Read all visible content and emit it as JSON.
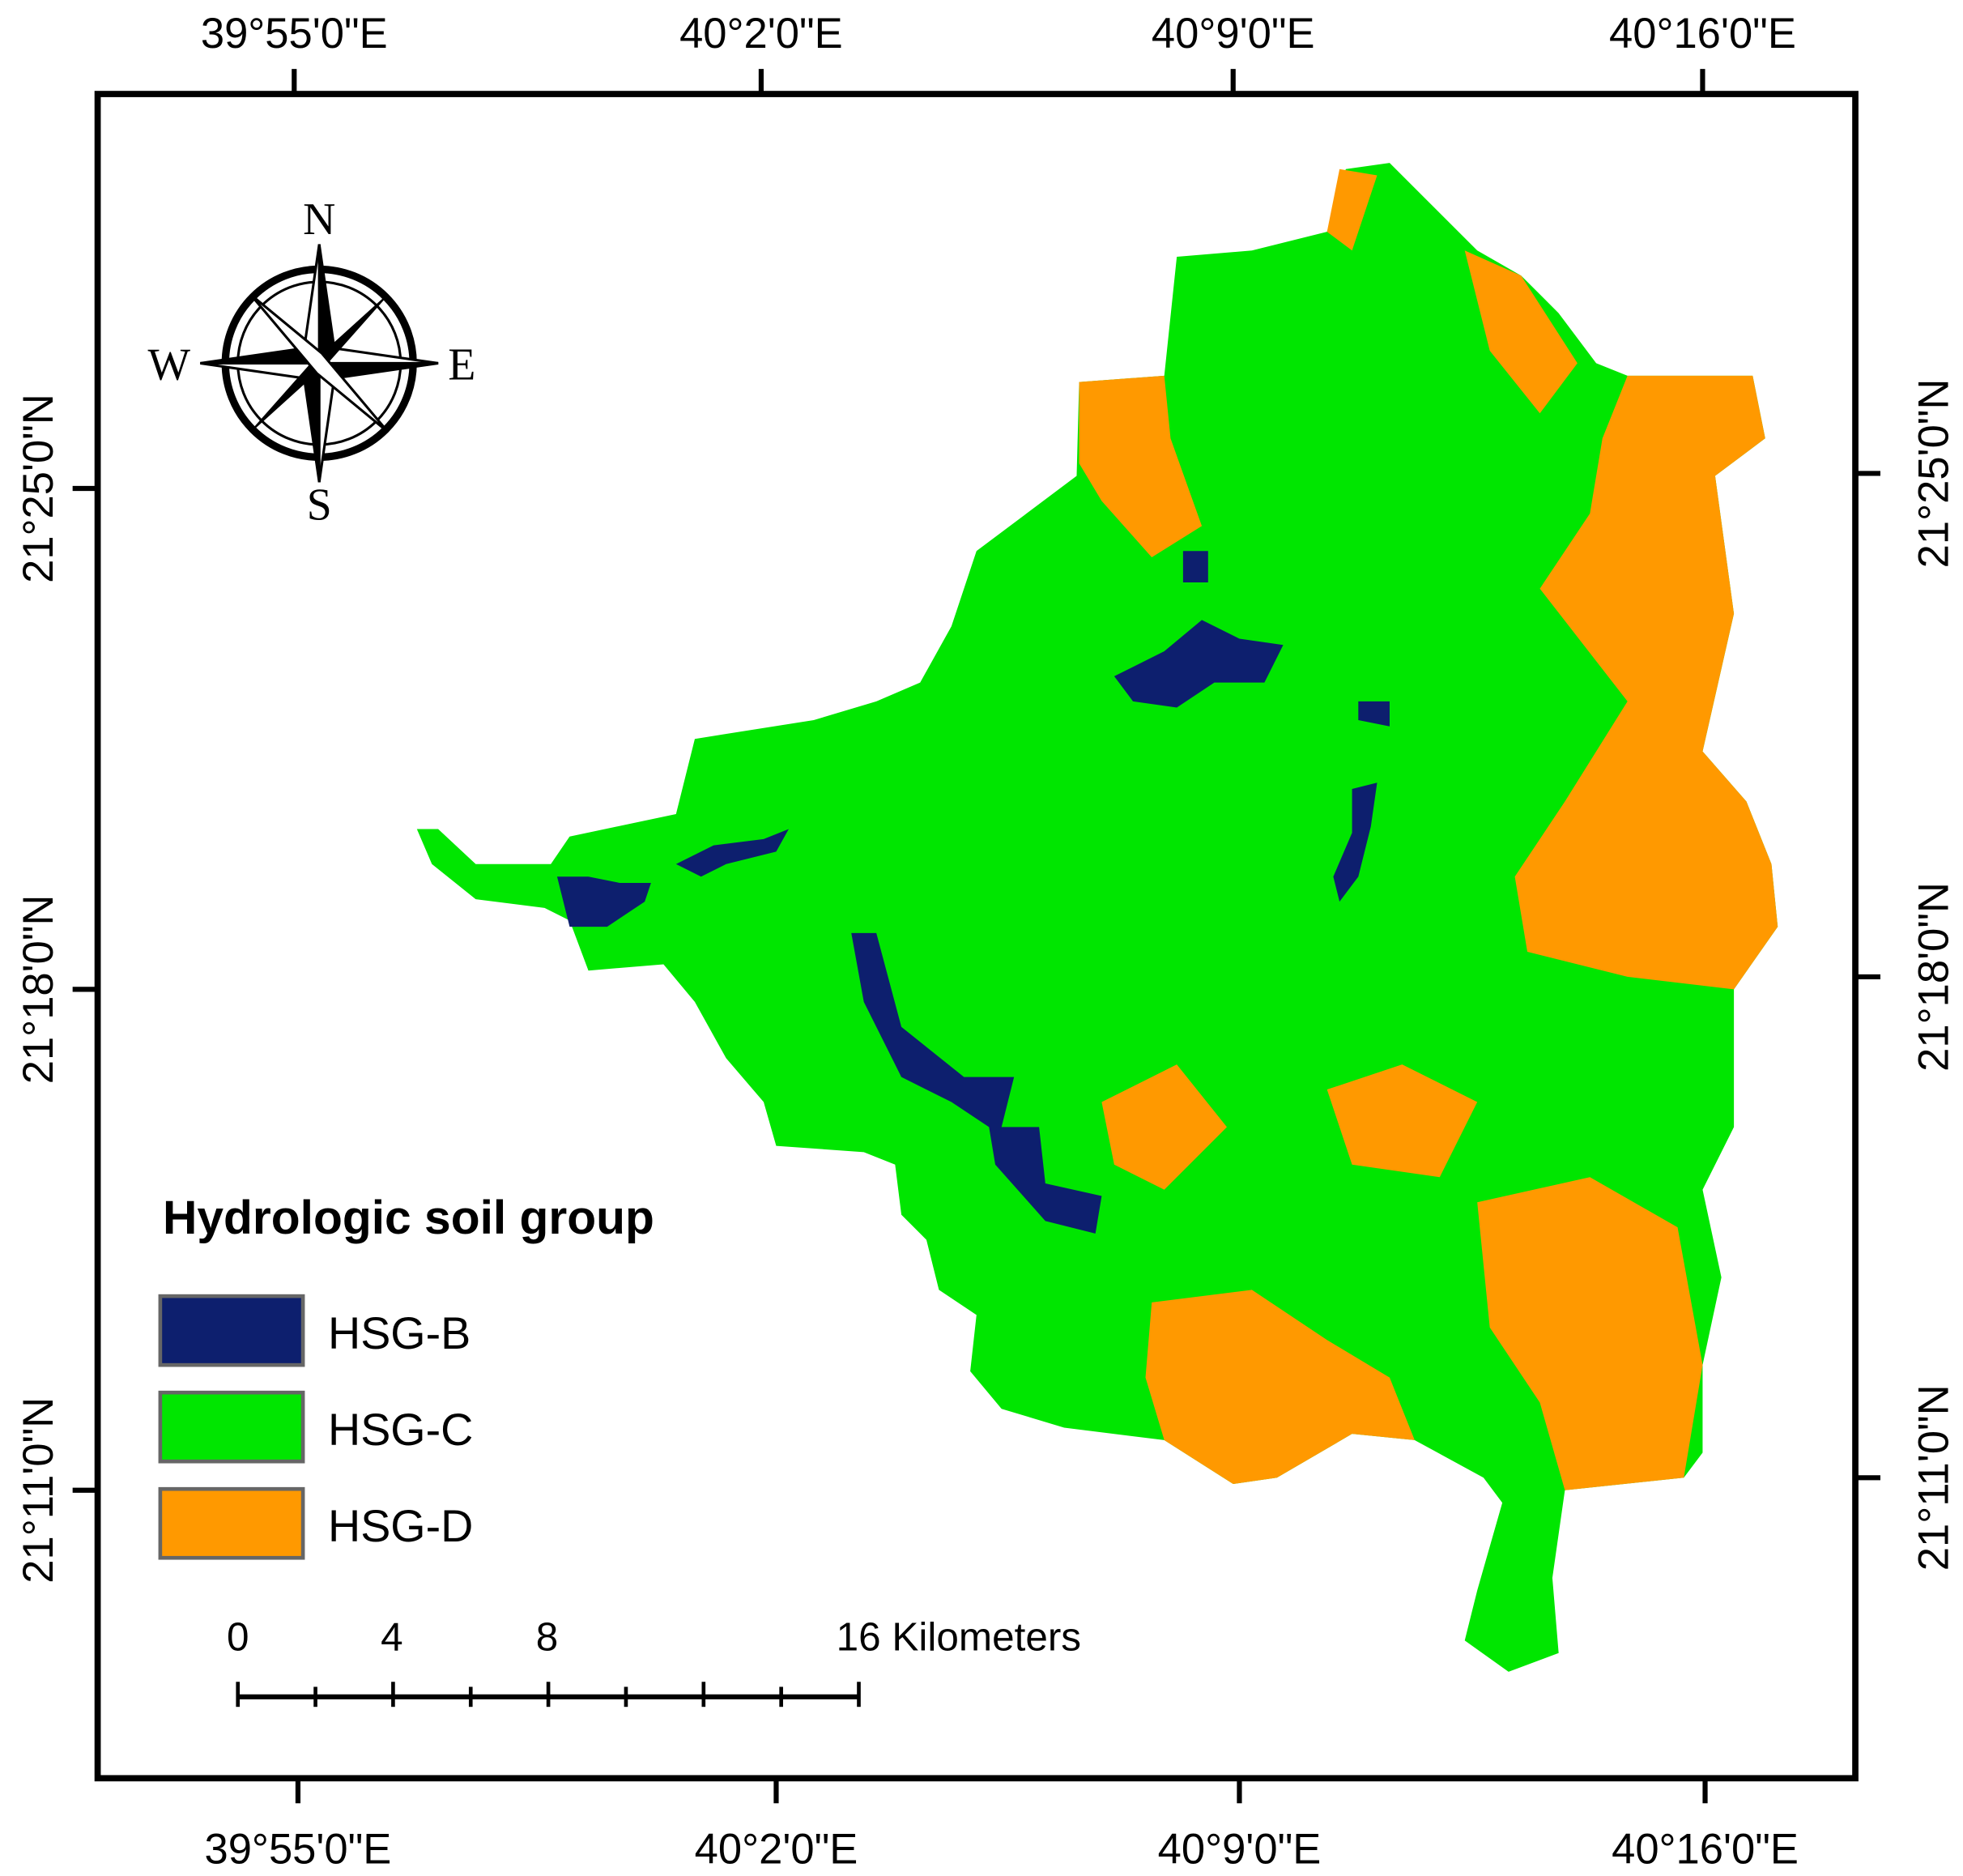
{
  "map": {
    "lon_labels_top": [
      "39°55'0\"E",
      "40°2'0\"E",
      "40°9'0\"E",
      "40°16'0\"E"
    ],
    "lon_labels_bottom": [
      "39°55'0\"E",
      "40°2'0\"E",
      "40°9'0\"E",
      "40°16'0\"E"
    ],
    "lat_labels_left": [
      "21°25'0\"N",
      "21°18'0\"N",
      "21°11'0\"N"
    ],
    "lat_labels_right": [
      "21°25'0\"N",
      "21°18'0\"N",
      "21°11'0\"N"
    ],
    "compass": {
      "north": "N",
      "east": "E",
      "south": "S",
      "west": "W"
    },
    "legend": {
      "title": "Hydrologic soil group",
      "items": [
        {
          "label": "HSG-B",
          "color": "#0d1f6e"
        },
        {
          "label": "HSG-C",
          "color": "#00e600"
        },
        {
          "label": "HSG-D",
          "color": "#ff9900"
        }
      ]
    },
    "scale_bar": {
      "labels": [
        "0",
        "4",
        "8",
        "16 Kilometers"
      ]
    }
  }
}
